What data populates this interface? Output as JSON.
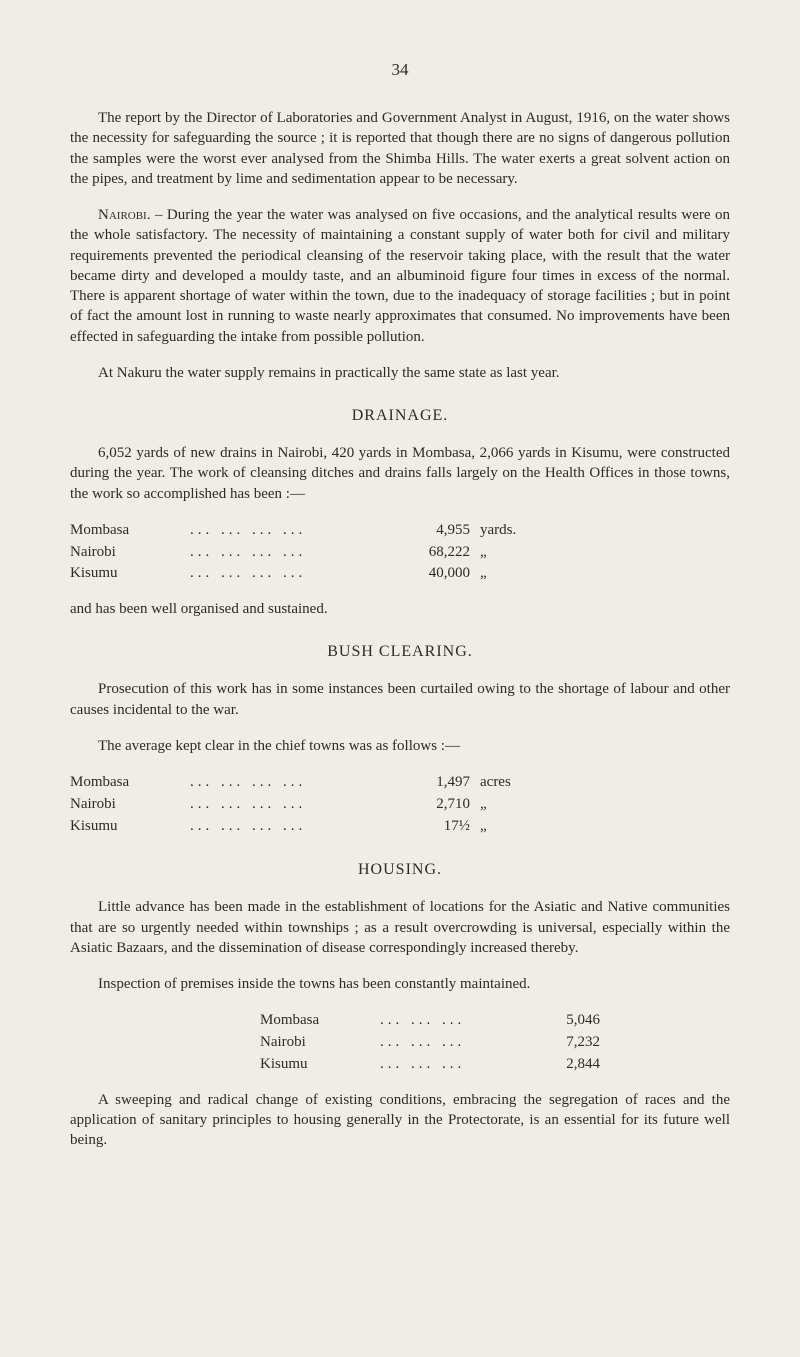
{
  "page_number": "34",
  "p1": "The report by the Director of Laboratories and Government Analyst in August, 1916, on the water shows the necessity for safeguarding the source ; it is reported that though there are no signs of dangerous pollution the samples were the worst ever analysed from the Shimba Hills. The water exerts a great solvent action on the pipes, and treatment by lime and sedimentation appear to be necessary.",
  "p2_lead": "Nairobi. –",
  "p2": " During the year the water was analysed on five occasions, and the analytical results were on the whole satisfactory. The necessity of maintaining a constant supply of water both for civil and military requirements prevented the periodical cleansing of the reservoir taking place, with the result that the water became dirty and developed a mouldy taste, and an albuminoid figure four times in excess of the normal. There is apparent shortage of water within the town, due to the inadequacy of storage facilities ; but in point of fact the amount lost in running to waste nearly approximates that consumed. No improvements have been effected in safeguarding the intake from possible pollution.",
  "p3": "At Nakuru the water supply remains in practically the same state as last year.",
  "drainage": {
    "heading": "DRAINAGE.",
    "intro": "6,052 yards of new drains in Nairobi, 420 yards in Mombasa, 2,066 yards in Kisumu, were constructed during the year. The work of cleansing ditches and drains falls largely on the Health Offices in those towns, the work so accomplished has been :—",
    "rows": [
      {
        "label": "Mombasa",
        "dots": "...   ...   ...   ...",
        "value": "4,955",
        "unit": "yards."
      },
      {
        "label": "Nairobi",
        "dots": "...   ...   ...   ...",
        "value": "68,222",
        "unit": "„"
      },
      {
        "label": "Kisumu",
        "dots": "...   ...   ...   ...",
        "value": "40,000",
        "unit": "„"
      }
    ],
    "outro": "and has been well organised and sustained."
  },
  "bush": {
    "heading": "BUSH CLEARING.",
    "p1": "Prosecution of this work has in some instances been curtailed owing to the shortage of labour and other causes incidental to the war.",
    "p2": "The average kept clear in the chief towns was as follows :—",
    "rows": [
      {
        "label": "Mombasa",
        "dots": "...   ...   ...   ...",
        "value": "1,497",
        "unit": "acres"
      },
      {
        "label": "Nairobi",
        "dots": "...   ...   ...   ...",
        "value": "2,710",
        "unit": "„"
      },
      {
        "label": "Kisumu",
        "dots": "...   ...   ...   ...",
        "value": "17½",
        "unit": "„"
      }
    ]
  },
  "housing": {
    "heading": "HOUSING.",
    "p1": "Little advance has been made in the establishment of locations for the Asiatic and Native communities that are so urgently needed within townships ; as a result overcrowding is universal, especially within the Asiatic Bazaars, and the dissemination of disease correspondingly increased thereby.",
    "p2": "Inspection of premises inside the towns has been constantly maintained.",
    "rows": [
      {
        "label": "Mombasa",
        "dots": "...   ...   ...",
        "value": "5,046"
      },
      {
        "label": "Nairobi",
        "dots": "...   ...   ...",
        "value": "7,232"
      },
      {
        "label": "Kisumu",
        "dots": "...   ...   ...",
        "value": "2,844"
      }
    ],
    "p3": "A sweeping and radical change of existing conditions, embracing the segregation of races and the application of sanitary principles to housing generally in the Protectorate, is an essential for its future well being."
  }
}
